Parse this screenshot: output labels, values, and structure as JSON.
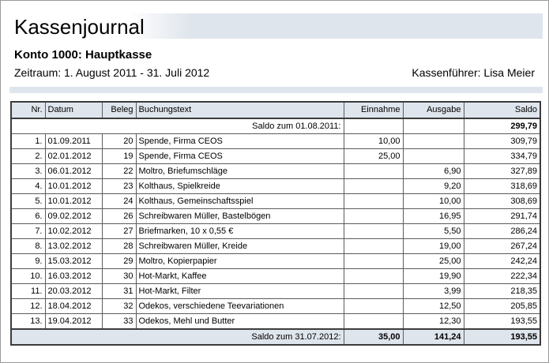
{
  "header": {
    "title": "Kassenjournal",
    "konto": "Konto 1000: Hauptkasse",
    "zeitraum": "Zeitraum: 1. August 2011 - 31. Juli 2012",
    "kassenfuehrer": "Kassenführer: Lisa Meier"
  },
  "table": {
    "columns": [
      "Nr.",
      "Datum",
      "Beleg",
      "Buchungstext",
      "Einnahme",
      "Ausgabe",
      "Saldo"
    ],
    "opening": {
      "label": "Saldo zum 01.08.2011:",
      "saldo": "299,79"
    },
    "rows": [
      {
        "nr": "1.",
        "datum": "01.09.2011",
        "beleg": "20",
        "text": "Spende, Firma CEOS",
        "einnahme": "10,00",
        "ausgabe": "",
        "saldo": "309,79"
      },
      {
        "nr": "2.",
        "datum": "02.01.2012",
        "beleg": "19",
        "text": "Spende, Firma CEOS",
        "einnahme": "25,00",
        "ausgabe": "",
        "saldo": "334,79"
      },
      {
        "nr": "3.",
        "datum": "06.01.2012",
        "beleg": "22",
        "text": "Moltro, Briefumschläge",
        "einnahme": "",
        "ausgabe": "6,90",
        "saldo": "327,89"
      },
      {
        "nr": "4.",
        "datum": "10.01.2012",
        "beleg": "23",
        "text": "Kolthaus, Spielkreide",
        "einnahme": "",
        "ausgabe": "9,20",
        "saldo": "318,69"
      },
      {
        "nr": "5.",
        "datum": "10.01.2012",
        "beleg": "24",
        "text": "Kolthaus, Gemeinschaftsspiel",
        "einnahme": "",
        "ausgabe": "10,00",
        "saldo": "308,69"
      },
      {
        "nr": "6.",
        "datum": "09.02.2012",
        "beleg": "26",
        "text": "Schreibwaren Müller, Bastelbögen",
        "einnahme": "",
        "ausgabe": "16,95",
        "saldo": "291,74"
      },
      {
        "nr": "7.",
        "datum": "10.02.2012",
        "beleg": "27",
        "text": "Briefmarken, 10 x 0,55 €",
        "einnahme": "",
        "ausgabe": "5,50",
        "saldo": "286,24"
      },
      {
        "nr": "8.",
        "datum": "13.02.2012",
        "beleg": "28",
        "text": "Schreibwaren Müller, Kreide",
        "einnahme": "",
        "ausgabe": "19,00",
        "saldo": "267,24"
      },
      {
        "nr": "9.",
        "datum": "15.03.2012",
        "beleg": "29",
        "text": "Moltro, Kopierpapier",
        "einnahme": "",
        "ausgabe": "25,00",
        "saldo": "242,24"
      },
      {
        "nr": "10.",
        "datum": "16.03.2012",
        "beleg": "30",
        "text": "Hot-Markt, Kaffee",
        "einnahme": "",
        "ausgabe": "19,90",
        "saldo": "222,34"
      },
      {
        "nr": "11.",
        "datum": "20.03.2012",
        "beleg": "31",
        "text": "Hot-Markt, Filter",
        "einnahme": "",
        "ausgabe": "3,99",
        "saldo": "218,35"
      },
      {
        "nr": "12.",
        "datum": "18.04.2012",
        "beleg": "32",
        "text": "Odekos, verschiedene Teevariationen",
        "einnahme": "",
        "ausgabe": "12,50",
        "saldo": "205,85"
      },
      {
        "nr": "13.",
        "datum": "19.04.2012",
        "beleg": "33",
        "text": "Odekos, Mehl und Butter",
        "einnahme": "",
        "ausgabe": "12,30",
        "saldo": "193,55"
      }
    ],
    "closing": {
      "label": "Saldo zum 31.07.2012:",
      "einnahme": "35,00",
      "ausgabe": "141,24",
      "saldo": "193,55"
    }
  }
}
